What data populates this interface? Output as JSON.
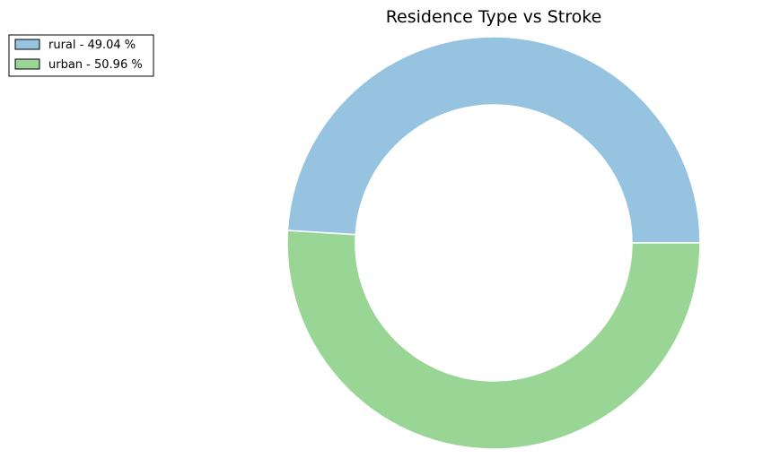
{
  "chart_data": {
    "type": "pie",
    "style": "donut",
    "title": "Residence Type vs Stroke",
    "categories": [
      "rural",
      "urban"
    ],
    "values": [
      49.04,
      50.96
    ],
    "unit": "%",
    "legend_labels": [
      "rural - 49.04 %",
      "urban - 50.96 %"
    ],
    "colors": [
      "#96c4e0",
      "#99d594"
    ],
    "legend": "top-left",
    "start_angle_deg": 0,
    "direction": "counterclockwise"
  }
}
